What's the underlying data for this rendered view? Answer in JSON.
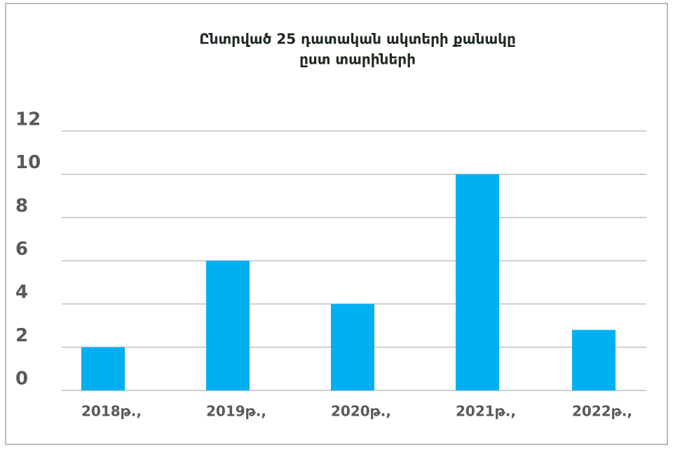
{
  "chart_data": {
    "type": "bar",
    "title": [
      "Ընտրված 25 դատական ակտերի քանակը",
      "ըստ տարիների"
    ],
    "categories": [
      "2018թ.,",
      "2019թ.,",
      "2020թ.,",
      "2021թ.,",
      "2022թ.,"
    ],
    "values": [
      2,
      6,
      4,
      10,
      2.8
    ],
    "color": "#00b0f0",
    "ylim": [
      0,
      12
    ],
    "yticks": [
      0,
      2,
      4,
      6,
      8,
      10,
      12
    ],
    "grid": true
  }
}
